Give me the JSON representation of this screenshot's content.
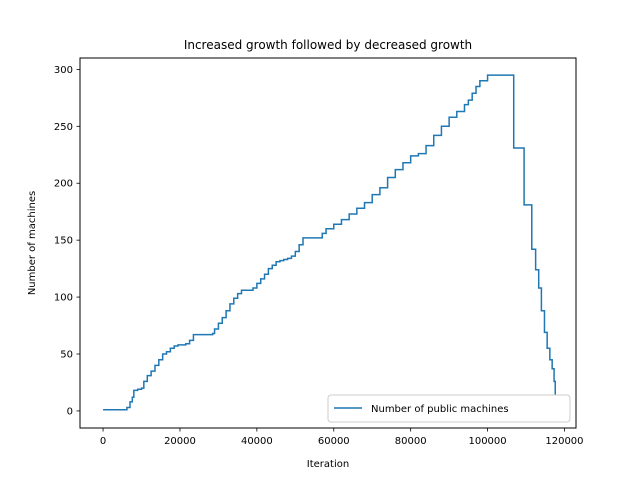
{
  "chart_data": {
    "type": "line",
    "title": "Increased growth followed by decreased growth",
    "xlabel": "Iteration",
    "ylabel": "Number of machines",
    "xlim": [
      -6000,
      123000
    ],
    "ylim": [
      -15,
      310
    ],
    "xticks": [
      0,
      20000,
      40000,
      60000,
      80000,
      100000,
      120000
    ],
    "yticks": [
      0,
      50,
      100,
      150,
      200,
      250,
      300
    ],
    "xtick_labels": [
      "0",
      "20000",
      "40000",
      "60000",
      "80000",
      "100000",
      "120000"
    ],
    "ytick_labels": [
      "0",
      "50",
      "100",
      "150",
      "200",
      "250",
      "300"
    ],
    "grid": false,
    "legend_position": "lower right",
    "series": [
      {
        "name": "Number of public machines",
        "color": "#1f77b4",
        "style": "step",
        "x": [
          0,
          5800,
          6200,
          7000,
          7600,
          8000,
          9000,
          10000,
          10600,
          11500,
          12500,
          13500,
          14500,
          15500,
          16500,
          17500,
          18500,
          19500,
          20500,
          21500,
          22500,
          23500,
          28000,
          28500,
          29000,
          30000,
          31000,
          32000,
          33000,
          34000,
          35000,
          36000,
          37500,
          39000,
          40000,
          41000,
          42000,
          43000,
          44000,
          45000,
          46000,
          47000,
          48000,
          49000,
          50000,
          51000,
          52000,
          56000,
          57000,
          58000,
          60000,
          62000,
          64000,
          66000,
          68000,
          70000,
          72000,
          74000,
          76000,
          78000,
          80000,
          82000,
          84000,
          86000,
          88000,
          90000,
          92000,
          94000,
          95000,
          96000,
          97000,
          98000,
          100000,
          104000,
          106800,
          109500,
          111500,
          112500,
          113300,
          114000,
          114800,
          115500,
          116200,
          116800,
          117300,
          117600
        ],
        "y": [
          1,
          1,
          3,
          8,
          12,
          18,
          19,
          20,
          26,
          31,
          35,
          40,
          45,
          50,
          52,
          55,
          57,
          58,
          58,
          59,
          62,
          67,
          67,
          68,
          72,
          77,
          82,
          88,
          94,
          99,
          103,
          106,
          106,
          108,
          112,
          116,
          120,
          125,
          128,
          131,
          132,
          133,
          134,
          136,
          140,
          146,
          152,
          152,
          156,
          160,
          164,
          168,
          173,
          178,
          183,
          190,
          196,
          205,
          212,
          218,
          224,
          226,
          233,
          242,
          250,
          258,
          263,
          269,
          273,
          279,
          285,
          290,
          295,
          295,
          231,
          181,
          142,
          124,
          108,
          88,
          69,
          55,
          45,
          37,
          26,
          14
        ]
      }
    ]
  }
}
